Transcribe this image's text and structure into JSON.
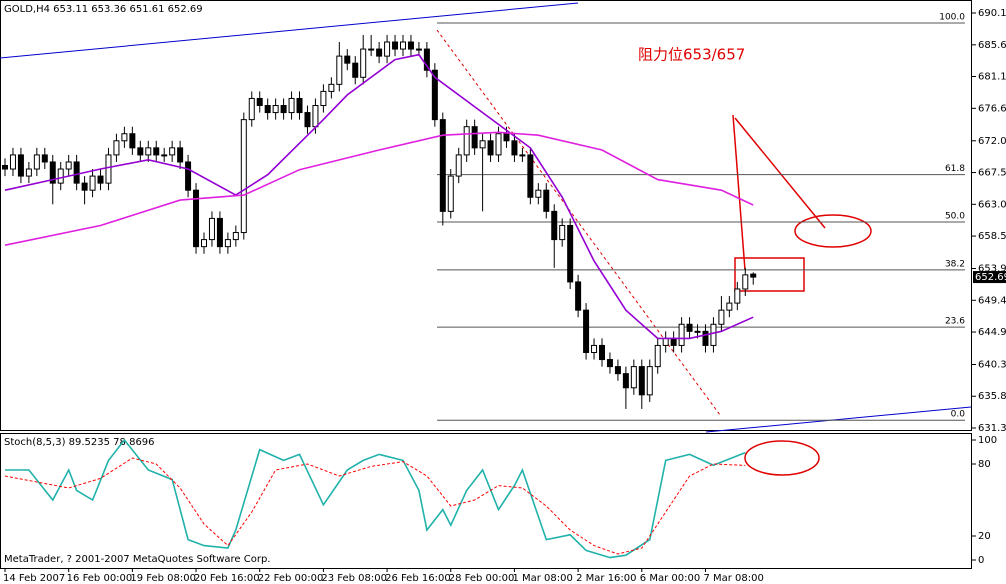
{
  "chart_data": [
    {
      "type": "candlestick",
      "title": "GOLD,H4 653.11 653.36 651.61 652.69",
      "annotation": "阻力位653/657",
      "footer": "MetaTrader, ? 2001-2007 MetaQuotes Software Corp.",
      "categories": [
        "14 Feb 2007",
        null,
        null,
        null,
        null,
        null,
        null,
        null,
        "16 Feb 00:00",
        null,
        null,
        null,
        null,
        null,
        null,
        null,
        "19 Feb 08:00",
        null,
        null,
        null,
        null,
        null,
        null,
        null,
        "20 Feb 16:00",
        null,
        null,
        null,
        null,
        null,
        null,
        null,
        "22 Feb 00:00",
        null,
        null,
        null,
        null,
        null,
        null,
        null,
        "23 Feb 08:00",
        null,
        null,
        null,
        null,
        null,
        null,
        null,
        "26 Feb 16:00",
        null,
        null,
        null,
        null,
        null,
        null,
        null,
        "28 Feb 00:00",
        null,
        null,
        null,
        null,
        null,
        null,
        null,
        "1 Mar 08:00",
        null,
        null,
        null,
        null,
        null,
        null,
        null,
        "2 Mar 16:00",
        null,
        null,
        null,
        null,
        null,
        null,
        null,
        "6 Mar 00:00",
        null,
        null,
        null,
        null,
        null,
        null,
        null,
        "7 Mar 08:00",
        null,
        null,
        null,
        null,
        null,
        null
      ],
      "ohlc": [
        [
          668.5,
          669.5,
          667,
          668
        ],
        [
          668,
          671,
          667,
          670
        ],
        [
          670,
          671,
          666,
          667
        ],
        [
          667,
          669,
          666,
          668
        ],
        [
          668,
          671,
          667,
          670
        ],
        [
          670,
          671,
          668,
          669
        ],
        [
          669,
          670,
          663,
          666
        ],
        [
          666,
          669,
          665,
          668
        ],
        [
          668,
          670,
          667,
          669
        ],
        [
          669,
          670,
          665,
          666
        ],
        [
          666,
          667,
          663,
          665
        ],
        [
          665,
          668,
          664,
          667
        ],
        [
          667,
          668,
          665,
          666
        ],
        [
          666,
          671,
          665,
          670
        ],
        [
          670,
          673,
          669,
          672
        ],
        [
          672,
          674,
          671,
          673
        ],
        [
          673,
          674,
          670,
          671
        ],
        [
          671,
          672,
          669,
          670
        ],
        [
          670,
          672,
          669,
          671
        ],
        [
          671,
          672,
          669,
          670
        ],
        [
          670,
          671,
          669,
          670
        ],
        [
          670,
          672,
          669,
          671
        ],
        [
          671,
          672,
          668,
          669
        ],
        [
          669,
          670,
          664,
          665
        ],
        [
          665,
          666,
          656,
          657
        ],
        [
          657,
          659,
          656,
          658
        ],
        [
          658,
          662,
          657,
          661
        ],
        [
          661,
          662,
          656,
          657
        ],
        [
          657,
          659,
          656,
          658
        ],
        [
          658,
          660,
          657,
          659
        ],
        [
          659,
          676,
          658,
          675
        ],
        [
          675,
          679,
          674,
          678
        ],
        [
          678,
          679,
          676,
          677
        ],
        [
          677,
          678,
          675,
          676
        ],
        [
          676,
          678,
          675,
          677
        ],
        [
          677,
          678,
          675,
          676
        ],
        [
          676,
          679,
          675,
          678
        ],
        [
          678,
          679,
          675,
          676
        ],
        [
          676,
          677,
          673,
          674
        ],
        [
          674,
          678,
          673,
          677
        ],
        [
          677,
          680,
          676,
          679
        ],
        [
          679,
          681,
          678,
          680
        ],
        [
          680,
          686,
          679,
          684
        ],
        [
          684,
          685,
          682,
          683
        ],
        [
          683,
          684,
          680,
          681
        ],
        [
          681,
          687,
          680,
          685
        ],
        [
          685,
          687,
          684,
          685
        ],
        [
          685,
          686,
          683,
          684
        ],
        [
          684,
          687,
          683,
          686
        ],
        [
          686,
          687,
          684,
          685
        ],
        [
          685,
          687,
          684,
          686
        ],
        [
          686,
          687,
          684,
          685
        ],
        [
          685,
          686,
          684,
          685
        ],
        [
          685,
          686,
          681,
          682
        ],
        [
          682,
          683,
          674,
          675
        ],
        [
          675,
          676,
          660,
          662
        ],
        [
          662,
          668,
          661,
          667
        ],
        [
          667,
          671,
          666,
          670
        ],
        [
          670,
          675,
          669,
          674
        ],
        [
          674,
          675,
          670,
          671
        ],
        [
          671,
          673,
          662,
          672
        ],
        [
          672,
          673,
          669,
          670
        ],
        [
          670,
          674,
          669,
          673
        ],
        [
          673,
          674,
          671,
          672
        ],
        [
          672,
          673,
          669,
          670
        ],
        [
          670,
          671,
          669,
          670
        ],
        [
          670,
          671,
          663,
          664
        ],
        [
          664,
          666,
          663,
          665
        ],
        [
          665,
          666,
          661,
          662
        ],
        [
          662,
          663,
          654,
          658
        ],
        [
          658,
          661,
          657,
          660
        ],
        [
          660,
          661,
          651,
          652
        ],
        [
          652,
          653,
          647,
          648
        ],
        [
          648,
          649,
          641,
          642
        ],
        [
          642,
          644,
          641,
          643
        ],
        [
          643,
          644,
          640,
          641
        ],
        [
          641,
          642,
          639,
          640
        ],
        [
          640,
          641,
          638,
          639
        ],
        [
          639,
          640,
          634,
          637
        ],
        [
          637,
          641,
          636,
          640
        ],
        [
          640,
          641,
          634,
          636
        ],
        [
          636,
          641,
          635,
          640
        ],
        [
          640,
          644,
          639,
          643
        ],
        [
          643,
          645,
          642,
          644
        ],
        [
          644,
          645,
          642,
          643
        ],
        [
          643,
          647,
          642,
          646
        ],
        [
          646,
          647,
          644,
          645
        ],
        [
          645,
          646,
          644,
          645
        ],
        [
          645,
          646,
          642,
          643
        ],
        [
          643,
          647,
          642,
          646
        ],
        [
          646,
          650,
          645,
          648
        ],
        [
          648,
          650,
          647,
          649
        ],
        [
          649,
          652,
          648,
          651
        ],
        [
          651,
          654,
          650,
          653
        ],
        [
          653.11,
          653.36,
          651.61,
          652.69
        ]
      ],
      "up_color": "#ffffff",
      "down_color": "#000000",
      "series": [
        {
          "color": "#9400d3",
          "x": [
            0,
            6,
            12,
            18,
            23,
            29,
            33,
            40,
            43,
            49,
            52,
            54,
            60,
            66,
            70,
            74,
            78,
            82,
            86,
            90,
            94
          ],
          "values": [
            665,
            666.5,
            668,
            669.3,
            668,
            664.3,
            667.2,
            675,
            678.5,
            683.5,
            684.2,
            681,
            676,
            671,
            664,
            655,
            648,
            644,
            644,
            645,
            647
          ]
        },
        {
          "color": "#e020e0",
          "x": [
            0,
            12,
            22,
            30,
            37,
            47,
            55,
            62,
            67,
            75,
            82,
            90,
            94
          ],
          "values": [
            657.2,
            660,
            663.6,
            664.3,
            667.9,
            670.7,
            672.8,
            673.2,
            672.8,
            670.7,
            666.5,
            665,
            662.9
          ]
        }
      ],
      "fib_levels": [
        {
          "value": 688.7,
          "label": "100.0"
        },
        {
          "value": 667.2,
          "label": "61.8"
        },
        {
          "value": 660.5,
          "label": "50.0"
        },
        {
          "value": 653.7,
          "label": "38.2"
        },
        {
          "value": 645.6,
          "label": "23.6"
        },
        {
          "value": 632.4,
          "label": "0.0"
        }
      ],
      "ylim": [
        631.3,
        690.11
      ],
      "yticks": [
        690.11,
        {
          "value": 685.6,
          "label": "685.60"
        },
        681.11,
        {
          "value": 676.6,
          "label": "676.60"
        },
        {
          "value": 672,
          "label": "672.00"
        },
        {
          "value": 667.5,
          "label": "667.50"
        },
        {
          "value": 663,
          "label": "663.00"
        },
        {
          "value": 658.5,
          "label": "658.50"
        },
        {
          "value": 653.9,
          "label": "653.90"
        },
        {
          "value": 649.4,
          "label": "649.40"
        },
        {
          "value": 644.9,
          "label": "644.90"
        },
        {
          "value": 640.3,
          "label": "640.30"
        },
        {
          "value": 635.8,
          "label": "635.80"
        },
        {
          "value": 631.3,
          "label": "631.30"
        }
      ]
    },
    {
      "type": "line",
      "title": "Stoch(8,5,3) 89.5235 78.8696",
      "series": [
        {
          "color": "#20b2aa",
          "dash": false,
          "x": [
            0,
            3,
            6,
            8,
            9,
            11,
            13,
            15,
            18,
            21,
            23,
            25,
            28,
            29,
            32,
            35,
            37,
            40,
            43,
            45,
            47,
            50,
            52,
            53,
            55,
            56,
            58,
            60,
            62,
            64,
            65,
            68,
            71,
            73,
            76,
            78,
            81,
            83,
            86,
            89,
            93
          ],
          "values": [
            75,
            75,
            50,
            75,
            58,
            50,
            83,
            100,
            75,
            67,
            17,
            12,
            10,
            25,
            92,
            83,
            88,
            46,
            75,
            83,
            88,
            83,
            58,
            25,
            42,
            29,
            58,
            75,
            42,
            62,
            75,
            17,
            21,
            8,
            2,
            4,
            17,
            83,
            88,
            79,
            89.52
          ]
        },
        {
          "color": "#ff0000",
          "dash": true,
          "x": [
            0,
            4,
            8,
            12,
            16,
            19,
            22,
            25,
            28,
            31,
            34,
            38,
            42,
            46,
            50,
            53,
            56,
            59,
            62,
            65,
            68,
            71,
            74,
            77,
            80,
            83,
            86,
            89,
            93
          ],
          "values": [
            70,
            65,
            60,
            68,
            85,
            80,
            60,
            30,
            12,
            40,
            75,
            80,
            70,
            78,
            82,
            70,
            45,
            50,
            62,
            60,
            45,
            25,
            12,
            5,
            10,
            40,
            70,
            80,
            78.87
          ]
        }
      ],
      "ylim": [
        0,
        100
      ],
      "yticks": [
        100,
        80,
        20,
        0
      ]
    }
  ]
}
